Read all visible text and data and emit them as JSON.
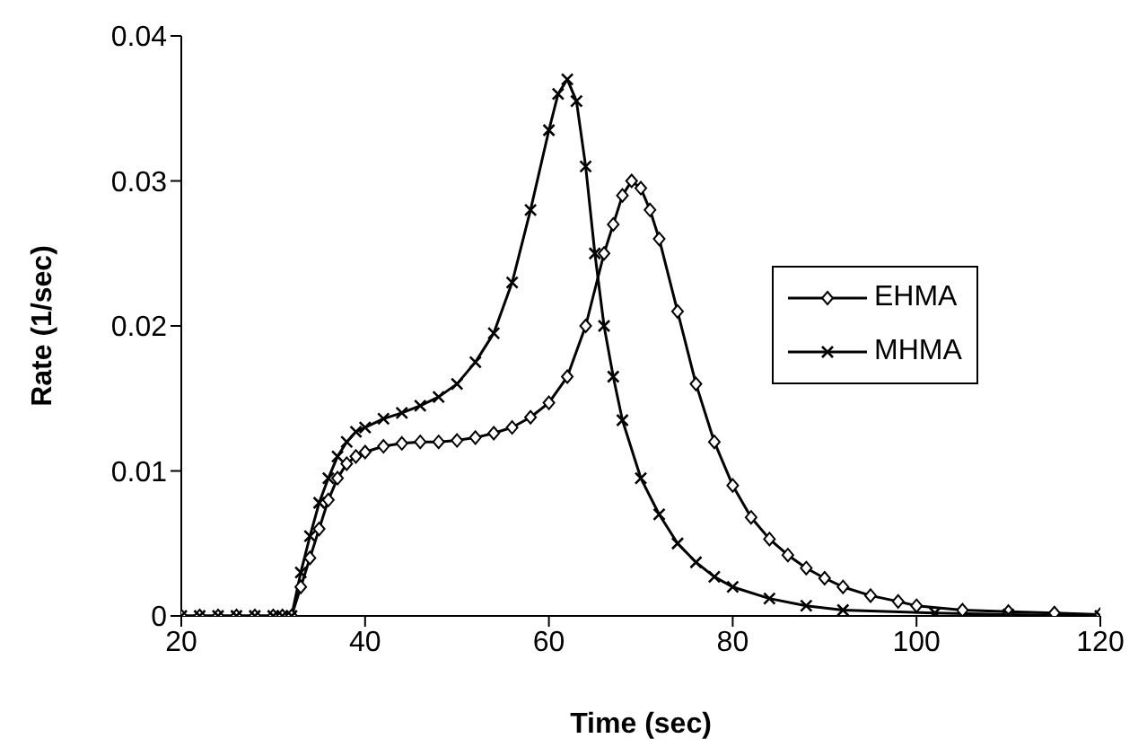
{
  "chart_data": {
    "type": "line",
    "xlabel": "Time (sec)",
    "ylabel": "Rate (1/sec)",
    "xlim": [
      20,
      120
    ],
    "xticks": [
      20,
      40,
      60,
      80,
      100,
      120
    ],
    "ylim": [
      0,
      0.04
    ],
    "yticks": [
      0,
      0.01,
      0.02,
      0.03,
      0.04
    ],
    "grid": false,
    "legend": "right",
    "series": [
      {
        "name": "EHMA",
        "color": "#000000",
        "marker": "diamond",
        "x": [
          20,
          22,
          24,
          26,
          28,
          30,
          31,
          32,
          33,
          34,
          35,
          36,
          37,
          38,
          39,
          40,
          42,
          44,
          46,
          48,
          50,
          52,
          54,
          56,
          58,
          60,
          62,
          64,
          66,
          67,
          68,
          69,
          70,
          71,
          72,
          74,
          76,
          78,
          80,
          82,
          84,
          86,
          88,
          90,
          92,
          95,
          98,
          100,
          105,
          110,
          115,
          120
        ],
        "values": [
          0,
          0,
          0,
          0,
          0,
          0,
          0,
          0,
          0.002,
          0.004,
          0.006,
          0.008,
          0.0095,
          0.0105,
          0.011,
          0.0113,
          0.0117,
          0.0119,
          0.012,
          0.012,
          0.0121,
          0.0123,
          0.0126,
          0.013,
          0.0137,
          0.0147,
          0.0165,
          0.02,
          0.025,
          0.027,
          0.029,
          0.03,
          0.0295,
          0.028,
          0.026,
          0.021,
          0.016,
          0.012,
          0.009,
          0.0068,
          0.0053,
          0.0042,
          0.0033,
          0.0026,
          0.002,
          0.0014,
          0.001,
          0.0007,
          0.0004,
          0.0003,
          0.0002,
          0.0001
        ]
      },
      {
        "name": "MHMA",
        "color": "#000000",
        "marker": "cross",
        "x": [
          20,
          22,
          24,
          26,
          28,
          30,
          31,
          32,
          33,
          34,
          35,
          36,
          37,
          38,
          39,
          40,
          42,
          44,
          46,
          48,
          50,
          52,
          54,
          56,
          58,
          60,
          61,
          62,
          63,
          64,
          65,
          66,
          67,
          68,
          70,
          72,
          74,
          76,
          78,
          80,
          84,
          88,
          92,
          102,
          110,
          120
        ],
        "values": [
          0,
          0,
          0,
          0,
          0,
          0,
          0,
          0,
          0.003,
          0.0055,
          0.0078,
          0.0095,
          0.011,
          0.012,
          0.0127,
          0.013,
          0.0136,
          0.014,
          0.0145,
          0.0151,
          0.016,
          0.0175,
          0.0195,
          0.023,
          0.028,
          0.0335,
          0.036,
          0.037,
          0.0355,
          0.031,
          0.025,
          0.02,
          0.0165,
          0.0135,
          0.0095,
          0.007,
          0.005,
          0.0037,
          0.0027,
          0.002,
          0.0012,
          0.0007,
          0.0004,
          0.0002,
          0.0001,
          0
        ]
      }
    ]
  }
}
